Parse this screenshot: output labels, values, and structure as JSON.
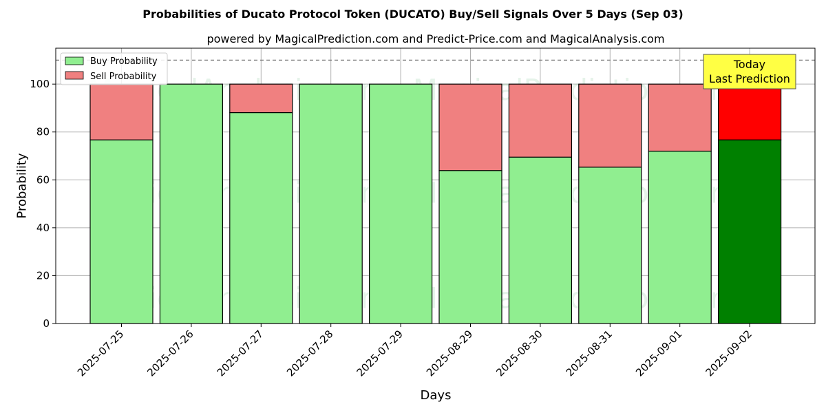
{
  "chart_data": {
    "type": "bar",
    "stacked": true,
    "title": "Probabilities of Ducato Protocol Token (DUCATO) Buy/Sell Signals Over 5 Days (Sep 03)",
    "subtitle": "powered by MagicalPrediction.com and Predict-Price.com and MagicalAnalysis.com",
    "xlabel": "Days",
    "ylabel": "Probability",
    "ylim": [
      0,
      115
    ],
    "yticks": [
      0,
      20,
      40,
      60,
      80,
      100
    ],
    "reference_line": 110,
    "grid": true,
    "legend_position": "top-left",
    "categories": [
      "2025-07-25",
      "2025-07-26",
      "2025-07-27",
      "2025-07-28",
      "2025-07-29",
      "2025-08-29",
      "2025-08-30",
      "2025-08-31",
      "2025-09-01",
      "2025-09-02"
    ],
    "series": [
      {
        "name": "Buy Probability",
        "values": [
          76.7,
          100,
          88.1,
          100,
          100,
          63.9,
          69.5,
          65.3,
          72.0,
          76.7
        ]
      },
      {
        "name": "Sell Probability",
        "values": [
          23.3,
          0,
          11.9,
          0,
          0,
          36.1,
          30.5,
          34.7,
          28.0,
          23.3
        ]
      }
    ],
    "colors": {
      "buy": "#90ee90",
      "sell": "#f08080",
      "buy_highlight": "#008000",
      "sell_highlight": "#ff0000",
      "annotation_bg": "#ffff44"
    },
    "highlight_index": 9,
    "annotation": {
      "line1": "Today",
      "line2": "Last Prediction"
    },
    "watermarks": [
      "MagicalAnalysis.com",
      "MagicalPrediction.com"
    ]
  }
}
